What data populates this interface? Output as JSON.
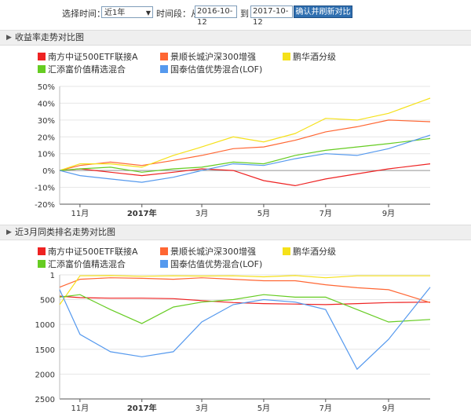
{
  "toolbar": {
    "select_time_label": "选择时间：",
    "period_value": "近1年",
    "time_range_label": "时间段：从",
    "start_date": "2016-10-12",
    "to_label": "到",
    "end_date": "2017-10-12",
    "confirm_button": "确认并刷新对比图"
  },
  "colors": {
    "red": "#ee2222",
    "orange": "#ff6633",
    "yellow": "#f5e11a",
    "green": "#66cc22",
    "blue": "#5599ee"
  },
  "series_names": [
    "南方中证500ETF联接A",
    "景顺长城沪深300增强",
    "鹏华酒分级",
    "汇添富价值精选混合",
    "国泰估值优势混合(LOF)"
  ],
  "chart_data": [
    {
      "type": "line",
      "section_title": "收益率走势对比图",
      "x_tick_labels": [
        "11月",
        "2017年",
        "3月",
        "5月",
        "7月",
        "9月"
      ],
      "y_tick_labels": [
        "50%",
        "40%",
        "30%",
        "20%",
        "10%",
        "0%",
        "-10%",
        "-20%"
      ],
      "ylim": [
        -20,
        50
      ],
      "y_unit": "%",
      "x_dates": [
        "2016-10-12",
        "2016-11-01",
        "2016-12-01",
        "2017-01-01",
        "2017-02-01",
        "2017-03-01",
        "2017-04-01",
        "2017-05-01",
        "2017-06-01",
        "2017-07-01",
        "2017-08-01",
        "2017-09-01",
        "2017-10-12"
      ],
      "series": [
        {
          "name": "南方中证500ETF联接A",
          "color": "#ee2222",
          "values": [
            0,
            1,
            -1,
            -3,
            -1,
            1,
            0,
            -6,
            -9,
            -5,
            -2,
            1,
            4
          ]
        },
        {
          "name": "景顺长城沪深300增强",
          "color": "#ff6633",
          "values": [
            0,
            3,
            5,
            3,
            6,
            9,
            13,
            14,
            18,
            23,
            26,
            30,
            29
          ]
        },
        {
          "name": "鹏华酒分级",
          "color": "#f5e11a",
          "values": [
            0,
            4,
            4,
            2,
            9,
            14,
            20,
            17,
            22,
            31,
            30,
            34,
            43
          ]
        },
        {
          "name": "汇添富价值精选混合",
          "color": "#66cc22",
          "values": [
            0,
            1,
            2,
            -1,
            1,
            2,
            5,
            4,
            9,
            12,
            14,
            16,
            19
          ]
        },
        {
          "name": "国泰估值优势混合(LOF)",
          "color": "#5599ee",
          "values": [
            0,
            -3,
            -5,
            -7,
            -4,
            0,
            4,
            3,
            7,
            10,
            9,
            13,
            21
          ]
        }
      ]
    },
    {
      "type": "line",
      "section_title": "近3月同类排名走势对比图",
      "x_tick_labels": [
        "11月",
        "2017年",
        "3月",
        "5月",
        "7月",
        "9月"
      ],
      "y_tick_labels": [
        "1",
        "500",
        "1000",
        "1500",
        "2000",
        "2500"
      ],
      "ylim": [
        1,
        2500
      ],
      "y_inverted": true,
      "x_dates": [
        "2016-10-12",
        "2016-11-01",
        "2016-12-01",
        "2017-01-01",
        "2017-02-01",
        "2017-03-01",
        "2017-04-01",
        "2017-05-01",
        "2017-06-01",
        "2017-07-01",
        "2017-08-01",
        "2017-09-01",
        "2017-10-12"
      ],
      "series": [
        {
          "name": "南方中证500ETF联接A",
          "color": "#ee2222",
          "values": [
            430,
            460,
            470,
            470,
            480,
            520,
            560,
            580,
            590,
            600,
            580,
            560,
            550
          ]
        },
        {
          "name": "景顺长城沪深300增强",
          "color": "#ff6633",
          "values": [
            250,
            90,
            60,
            70,
            90,
            60,
            90,
            120,
            120,
            200,
            260,
            300,
            560
          ]
        },
        {
          "name": "鹏华酒分级",
          "color": "#f5e11a",
          "values": [
            600,
            20,
            15,
            30,
            20,
            25,
            20,
            40,
            15,
            60,
            20,
            20,
            20
          ]
        },
        {
          "name": "汇添富价值精选混合",
          "color": "#66cc22",
          "values": [
            450,
            400,
            700,
            980,
            650,
            550,
            500,
            400,
            450,
            450,
            700,
            950,
            900
          ]
        },
        {
          "name": "国泰估值优势混合(LOF)",
          "color": "#5599ee",
          "values": [
            300,
            1200,
            1550,
            1650,
            1550,
            950,
            600,
            500,
            550,
            700,
            1900,
            1300,
            250
          ]
        }
      ]
    }
  ]
}
